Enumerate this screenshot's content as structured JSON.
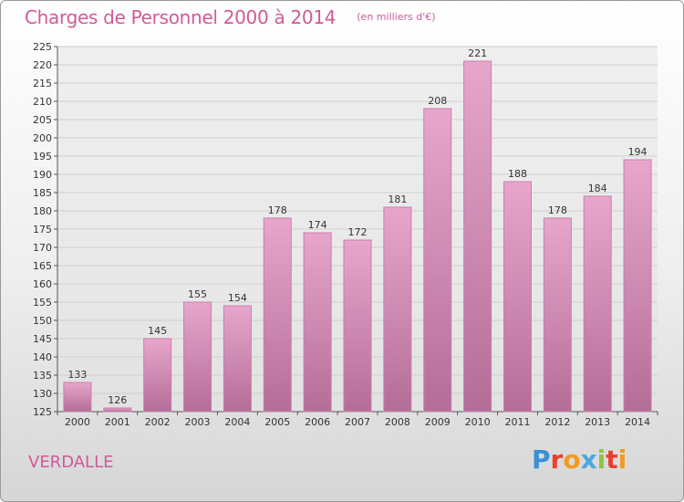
{
  "header": {
    "title": "Charges de Personnel 2000 à 2014",
    "subtitle": "(en milliers d'€)"
  },
  "footer": {
    "commune": "VERDALLE",
    "brand": "Proxiti",
    "brand_colors": [
      "#3a8fd8",
      "#e8402f",
      "#f19b1e",
      "#4aa8df",
      "#8cc63f",
      "#e8402f",
      "#f19b1e"
    ]
  },
  "colors": {
    "bar_top": "#e8a6cc",
    "bar_bottom": "#b36e98",
    "bar_edge": "#c97fab",
    "accent": "#d05a96"
  },
  "chart_data": {
    "type": "bar",
    "title": "Charges de Personnel 2000 à 2014",
    "subtitle": "(en milliers d'€)",
    "categories": [
      "2000",
      "2001",
      "2002",
      "2003",
      "2004",
      "2005",
      "2006",
      "2007",
      "2008",
      "2009",
      "2010",
      "2011",
      "2012",
      "2013",
      "2014"
    ],
    "values": [
      133,
      126,
      145,
      155,
      154,
      178,
      174,
      172,
      181,
      208,
      221,
      188,
      178,
      184,
      194
    ],
    "xlabel": "",
    "ylabel": "",
    "ylim": [
      125,
      225
    ],
    "yticks": [
      125,
      130,
      135,
      140,
      145,
      150,
      155,
      160,
      165,
      170,
      175,
      180,
      185,
      190,
      195,
      200,
      205,
      210,
      215,
      220,
      225
    ],
    "grid": true,
    "legend": "none"
  }
}
